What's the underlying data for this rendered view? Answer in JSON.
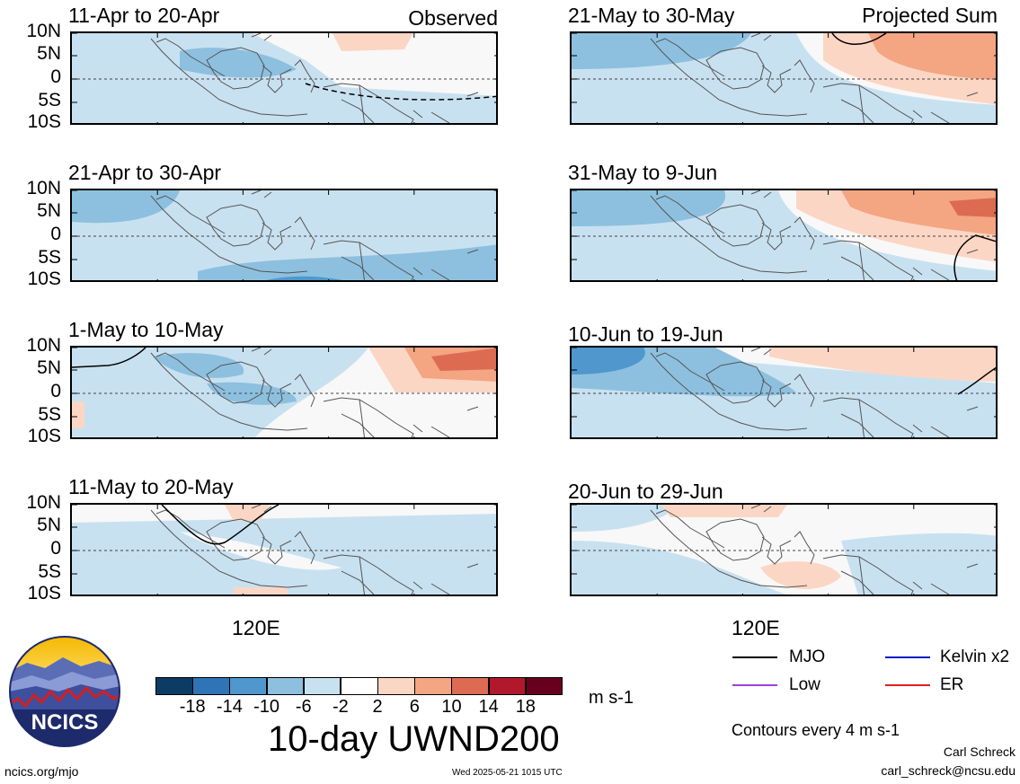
{
  "left_tag": "Observed",
  "right_tag": "Projected Sum",
  "lat_labels": [
    "10N",
    "5N",
    "0",
    "5S",
    "10S"
  ],
  "lon_label": "120E",
  "colorbar": {
    "ticks": [
      "-18",
      "-14",
      "-10",
      "-6",
      "-2",
      "2",
      "6",
      "10",
      "14",
      "18"
    ],
    "colors": [
      "#0c3b64",
      "#2f74b6",
      "#4f97cc",
      "#8dc0df",
      "#c8e1f0",
      "#ffffff",
      "#fcd6c4",
      "#f4a582",
      "#dc6b52",
      "#b2182b",
      "#67001f"
    ],
    "units": "m s-1"
  },
  "main_title": "10-day UWND200",
  "legend": [
    {
      "label": "MJO",
      "color": "#000000"
    },
    {
      "label": "Kelvin x2",
      "color": "#0018c8"
    },
    {
      "label": "Low",
      "color": "#a040e0"
    },
    {
      "label": "ER",
      "color": "#e02020"
    }
  ],
  "contour_note": "Contours every 4 m s-1",
  "author_name": "Carl Schreck",
  "author_email": "carl_schreck@ncsu.edu",
  "site": "ncics.org/mjo",
  "timestamp": "Wed 2025-05-21 1015 UTC",
  "logo_text": "NCICS",
  "chart_data": {
    "type": "heatmap",
    "variable": "10-day UWND200",
    "units": "m s-1",
    "levels": [
      -18,
      -14,
      -10,
      -6,
      -2,
      2,
      6,
      10,
      14,
      18
    ],
    "lat_range": [
      -10,
      10
    ],
    "lon_tick": "120E",
    "panels": [
      {
        "title": "11-Apr to 20-Apr",
        "type": "observed"
      },
      {
        "title": "21-Apr to 30-Apr",
        "type": "observed"
      },
      {
        "title": "1-May to 10-May",
        "type": "observed"
      },
      {
        "title": "11-May to 20-May",
        "type": "observed"
      },
      {
        "title": "21-May to 30-May",
        "type": "projected"
      },
      {
        "title": "31-May to 9-Jun",
        "type": "projected"
      },
      {
        "title": "10-Jun to 19-Jun",
        "type": "projected"
      },
      {
        "title": "20-Jun to 29-Jun",
        "type": "projected"
      }
    ]
  }
}
